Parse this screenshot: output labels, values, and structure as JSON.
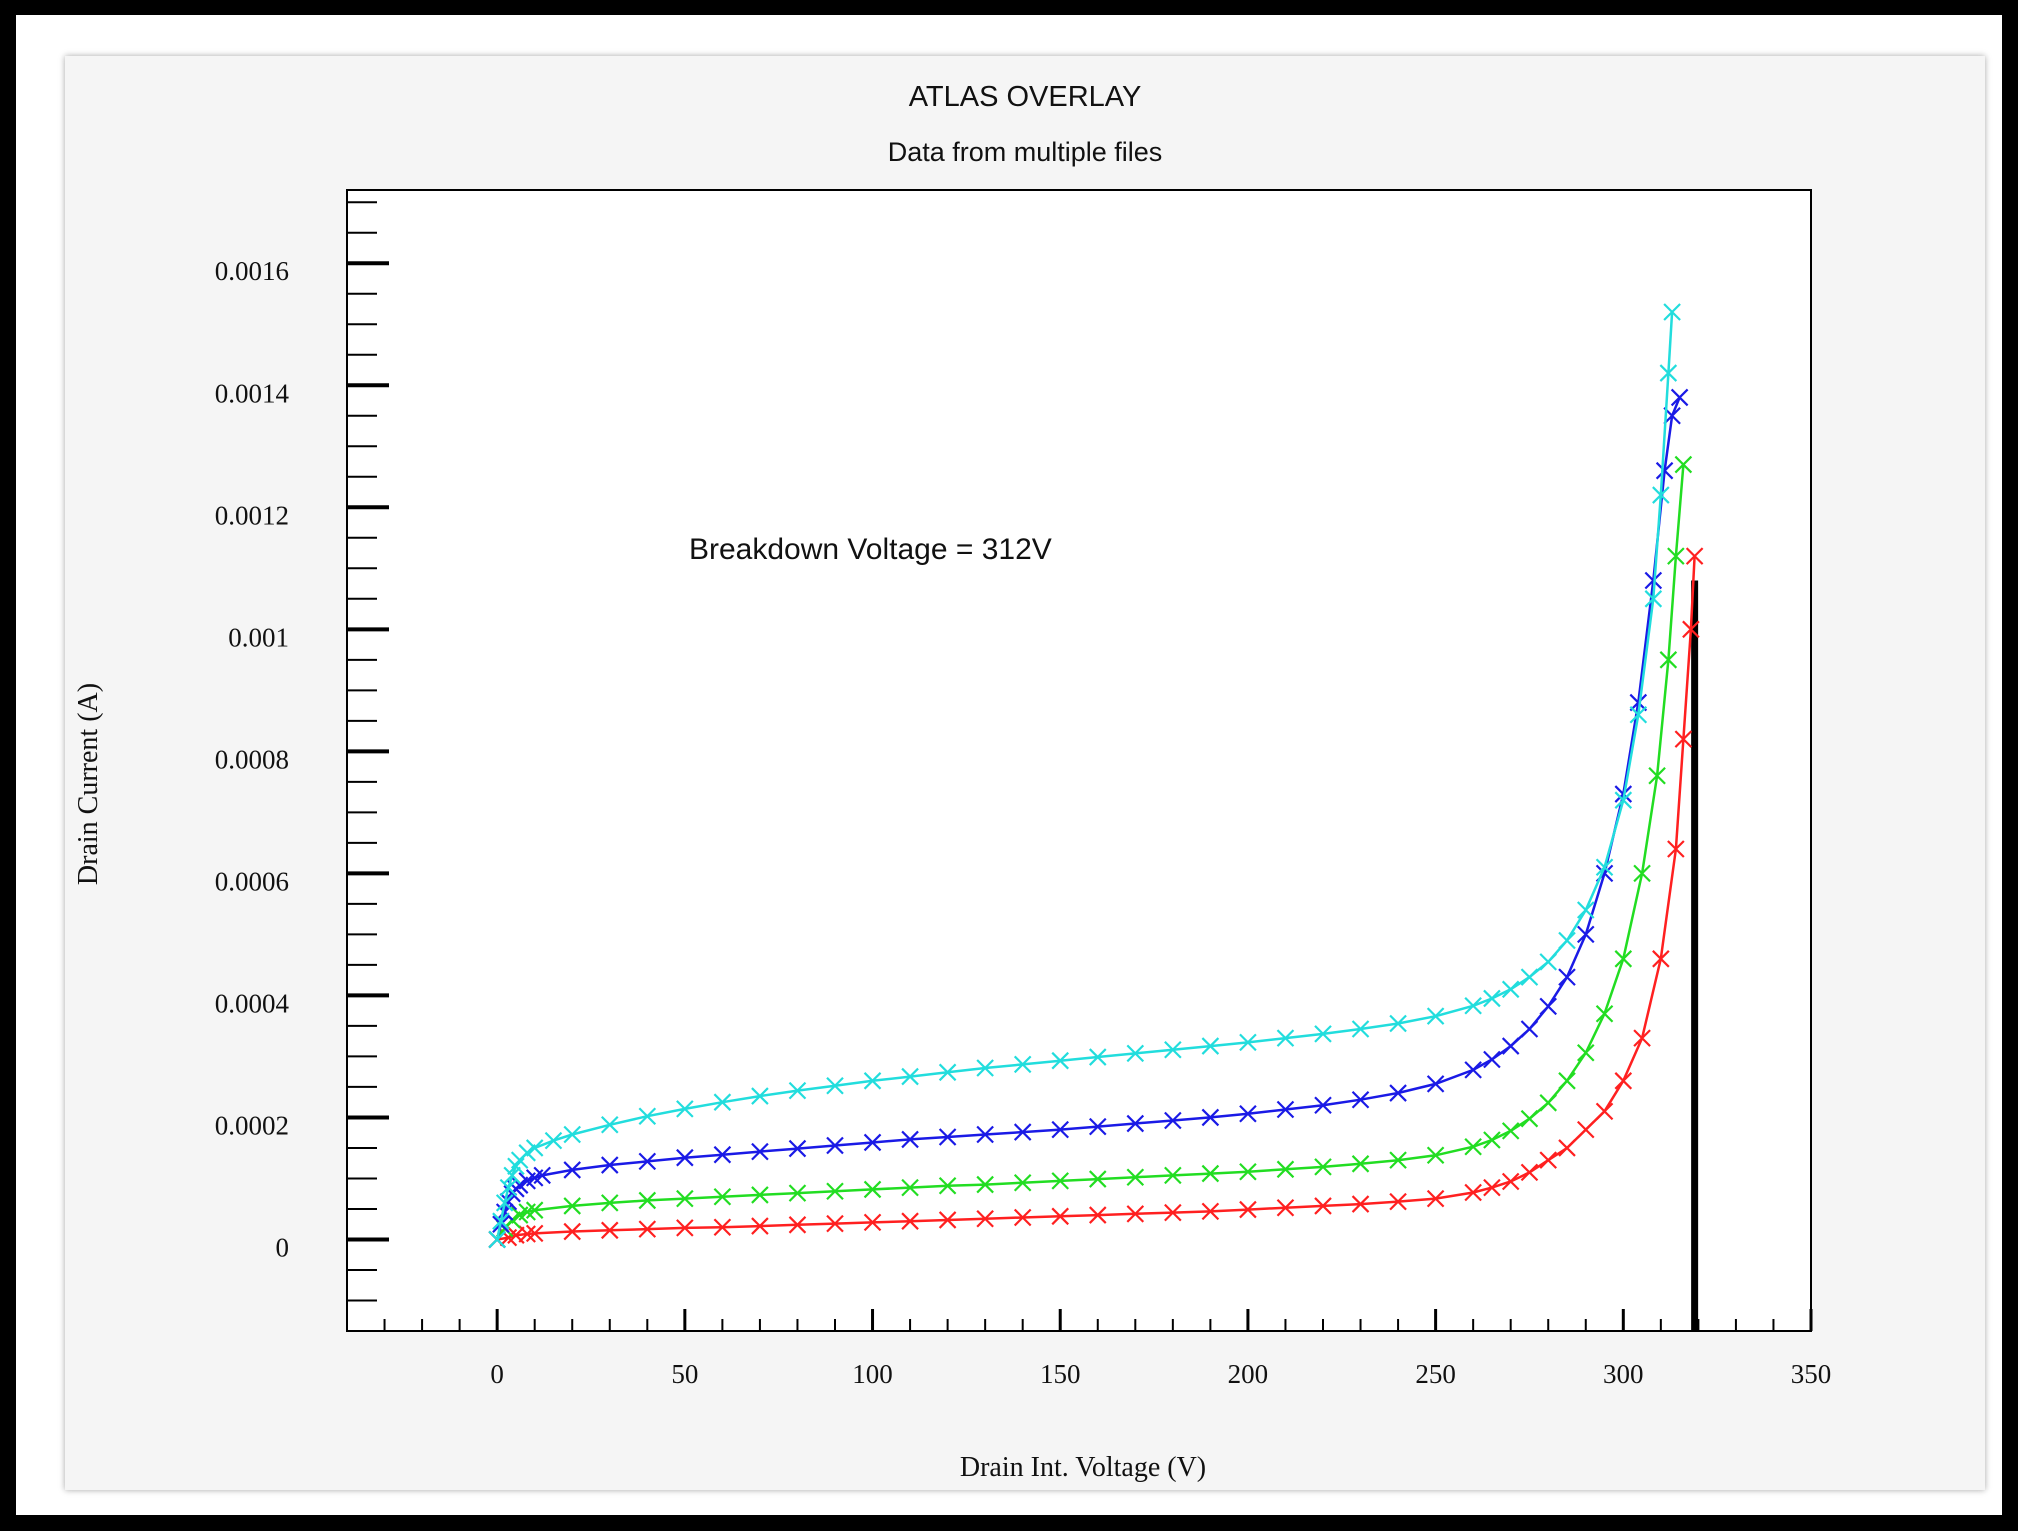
{
  "chart_data": {
    "type": "line",
    "title": "ATLAS OVERLAY",
    "subtitle": "Data from multiple files",
    "xlabel": "Drain Int. Voltage (V)",
    "ylabel": "Drain Current (A)",
    "xlim": [
      -40,
      350
    ],
    "ylim": [
      -0.00015,
      0.00172
    ],
    "xticks": [
      "0",
      "50",
      "100",
      "150",
      "200",
      "250",
      "300",
      "350"
    ],
    "yticks": [
      "0",
      "0.0002",
      "0.0004",
      "0.0006",
      "0.0008",
      "0.001",
      "0.0012",
      "0.0014",
      "0.0016"
    ],
    "annotation": "Breakdown Voltage = 312V",
    "marker": "x",
    "grid": false,
    "series": [
      {
        "color": "#ff2020",
        "x": [
          0,
          3,
          5,
          8,
          10,
          20,
          30,
          40,
          50,
          60,
          70,
          80,
          90,
          100,
          110,
          120,
          130,
          140,
          150,
          160,
          170,
          180,
          190,
          200,
          210,
          220,
          230,
          240,
          250,
          260,
          265,
          270,
          275,
          280,
          285,
          290,
          295,
          300,
          305,
          310,
          314,
          316,
          318,
          319
        ],
        "y": [
          0,
          3e-06,
          7e-06,
          9e-06,
          1e-05,
          1.3e-05,
          1.5e-05,
          1.7e-05,
          1.9e-05,
          2e-05,
          2.2e-05,
          2.4e-05,
          2.6e-05,
          2.8e-05,
          3e-05,
          3.2e-05,
          3.4e-05,
          3.6e-05,
          3.8e-05,
          4e-05,
          4.2e-05,
          4.4e-05,
          4.6e-05,
          4.9e-05,
          5.2e-05,
          5.5e-05,
          5.8e-05,
          6.2e-05,
          6.7e-05,
          7.7e-05,
          8.5e-05,
          9.5e-05,
          0.00011,
          0.00013,
          0.00015,
          0.00018,
          0.00021,
          0.00026,
          0.00033,
          0.00046,
          0.00064,
          0.00082,
          0.001,
          0.00112
        ]
      },
      {
        "color": "#22dd22",
        "x": [
          0,
          2,
          4,
          6,
          8,
          10,
          20,
          30,
          40,
          50,
          60,
          70,
          80,
          90,
          100,
          110,
          120,
          130,
          140,
          150,
          160,
          170,
          180,
          190,
          200,
          210,
          220,
          230,
          240,
          250,
          260,
          265,
          270,
          275,
          280,
          285,
          290,
          295,
          300,
          305,
          309,
          312,
          314,
          316
        ],
        "y": [
          0,
          1.8e-05,
          3.2e-05,
          4e-05,
          4.5e-05,
          4.8e-05,
          5.5e-05,
          6e-05,
          6.4e-05,
          6.7e-05,
          7e-05,
          7.3e-05,
          7.6e-05,
          7.9e-05,
          8.2e-05,
          8.5e-05,
          8.8e-05,
          9e-05,
          9.3e-05,
          9.6e-05,
          9.9e-05,
          0.000102,
          0.000105,
          0.000108,
          0.000111,
          0.000115,
          0.000119,
          0.000124,
          0.00013,
          0.000138,
          0.000152,
          0.000163,
          0.000178,
          0.000198,
          0.000224,
          0.00026,
          0.000306,
          0.00037,
          0.00046,
          0.0006,
          0.00076,
          0.00095,
          0.00112,
          0.00127
        ]
      },
      {
        "color": "#1a1ae6",
        "x": [
          0,
          1,
          2,
          3,
          4,
          5,
          6,
          8,
          10,
          12,
          20,
          30,
          40,
          50,
          60,
          70,
          80,
          90,
          100,
          110,
          120,
          130,
          140,
          150,
          160,
          170,
          180,
          190,
          200,
          210,
          220,
          230,
          240,
          250,
          260,
          265,
          270,
          275,
          280,
          285,
          290,
          295,
          300,
          304,
          308,
          311,
          313,
          315
        ],
        "y": [
          0,
          2.5e-05,
          4.5e-05,
          6.2e-05,
          7.5e-05,
          8.3e-05,
          8.9e-05,
          9.6e-05,
          0.000101,
          0.000105,
          0.000114,
          0.000122,
          0.000128,
          0.000134,
          0.000139,
          0.000144,
          0.000149,
          0.000154,
          0.000159,
          0.000164,
          0.000168,
          0.000172,
          0.000176,
          0.00018,
          0.000185,
          0.00019,
          0.000195,
          0.0002,
          0.000206,
          0.000213,
          0.00022,
          0.000229,
          0.00024,
          0.000255,
          0.000278,
          0.000295,
          0.000317,
          0.000345,
          0.000382,
          0.00043,
          0.0005,
          0.0006,
          0.00073,
          0.00088,
          0.00108,
          0.00126,
          0.00135,
          0.00138
        ]
      },
      {
        "color": "#22dddd",
        "x": [
          0,
          1,
          2,
          3,
          4,
          5,
          6,
          8,
          10,
          15,
          20,
          30,
          40,
          50,
          60,
          70,
          80,
          90,
          100,
          110,
          120,
          130,
          140,
          150,
          160,
          170,
          180,
          190,
          200,
          210,
          220,
          230,
          240,
          250,
          260,
          265,
          270,
          275,
          280,
          285,
          290,
          295,
          300,
          304,
          308,
          310,
          312,
          313
        ],
        "y": [
          0,
          3e-05,
          6e-05,
          8.5e-05,
          0.000105,
          0.00012,
          0.00013,
          0.000142,
          0.00015,
          0.000162,
          0.000172,
          0.000188,
          0.000202,
          0.000214,
          0.000225,
          0.000235,
          0.000244,
          0.000252,
          0.00026,
          0.000267,
          0.000274,
          0.000281,
          0.000287,
          0.000293,
          0.000299,
          0.000305,
          0.000311,
          0.000317,
          0.000323,
          0.00033,
          0.000337,
          0.000345,
          0.000354,
          0.000366,
          0.000383,
          0.000395,
          0.00041,
          0.00043,
          0.000455,
          0.00049,
          0.00054,
          0.00061,
          0.00072,
          0.00086,
          0.00105,
          0.00122,
          0.00142,
          0.00152
        ]
      }
    ],
    "vline": {
      "x": 319,
      "y_top": 0.00108,
      "color": "#000000"
    }
  }
}
